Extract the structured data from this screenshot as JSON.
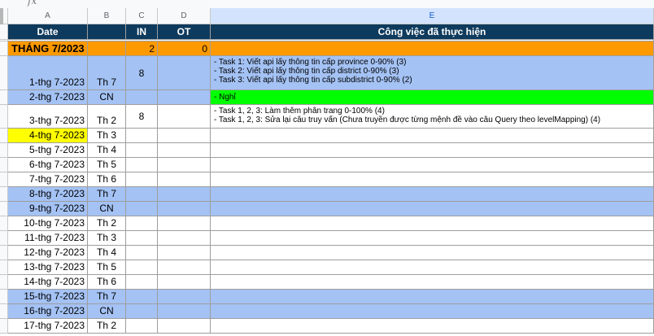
{
  "toolbar": {
    "fx_label": "fx"
  },
  "columns": {
    "a": "A",
    "b": "B",
    "c": "C",
    "d": "D",
    "e": "E"
  },
  "header": {
    "date": "Date",
    "b": "",
    "in": "IN",
    "ot": "OT",
    "work": "Công việc đã thực hiện"
  },
  "month_row": {
    "label": "THÁNG 7/2023",
    "in_total": "2",
    "ot_total": "0"
  },
  "rows": [
    {
      "date": "1-thg 7-2023",
      "day": "Th 7",
      "in": "8",
      "ot": "",
      "tasks": [
        "- Task 1: Viết api lấy thông tin cấp province 0-90% (3)",
        "- Task 2: Viết api lấy thông tin cấp district 0-90% (3)",
        "- Task 3: Viết api lấy thông tin cấp subdistrict 0-90% (2)"
      ]
    },
    {
      "date": "2-thg 7-2023",
      "day": "CN",
      "in": "",
      "ot": "",
      "tasks": [
        "- Nghỉ"
      ]
    },
    {
      "date": "3-thg 7-2023",
      "day": "Th 2",
      "in": "8",
      "ot": "",
      "tasks": [
        "- Task 1, 2, 3: Làm thêm phân trang 0-100% (4)",
        "- Task 1, 2, 3: Sửa lại câu truy vấn (Chưa truyền được từng mệnh đề vào câu Query theo levelMapping) (4)"
      ]
    },
    {
      "date": "4-thg 7-2023",
      "day": "Th 3",
      "in": "",
      "ot": "",
      "tasks": []
    },
    {
      "date": "5-thg 7-2023",
      "day": "Th 4",
      "in": "",
      "ot": "",
      "tasks": []
    },
    {
      "date": "6-thg 7-2023",
      "day": "Th 5",
      "in": "",
      "ot": "",
      "tasks": []
    },
    {
      "date": "7-thg 7-2023",
      "day": "Th 6",
      "in": "",
      "ot": "",
      "tasks": []
    },
    {
      "date": "8-thg 7-2023",
      "day": "Th 7",
      "in": "",
      "ot": "",
      "tasks": []
    },
    {
      "date": "9-thg 7-2023",
      "day": "CN",
      "in": "",
      "ot": "",
      "tasks": []
    },
    {
      "date": "10-thg 7-2023",
      "day": "Th 2",
      "in": "",
      "ot": "",
      "tasks": []
    },
    {
      "date": "11-thg 7-2023",
      "day": "Th 3",
      "in": "",
      "ot": "",
      "tasks": []
    },
    {
      "date": "12-thg 7-2023",
      "day": "Th 4",
      "in": "",
      "ot": "",
      "tasks": []
    },
    {
      "date": "13-thg 7-2023",
      "day": "Th 5",
      "in": "",
      "ot": "",
      "tasks": []
    },
    {
      "date": "14-thg 7-2023",
      "day": "Th 6",
      "in": "",
      "ot": "",
      "tasks": []
    },
    {
      "date": "15-thg 7-2023",
      "day": "Th 7",
      "in": "",
      "ot": "",
      "tasks": []
    },
    {
      "date": "16-thg 7-2023",
      "day": "CN",
      "in": "",
      "ot": "",
      "tasks": []
    },
    {
      "date": "17-thg 7-2023",
      "day": "Th 2",
      "in": "",
      "ot": "",
      "tasks": []
    }
  ],
  "colors": {
    "header_bg": "#0e3a5d",
    "month_bg": "#ff9900",
    "weekend_bg": "#a4c2f4",
    "dayoff_bg": "#00ff00",
    "selected_bg": "#ffff00"
  }
}
